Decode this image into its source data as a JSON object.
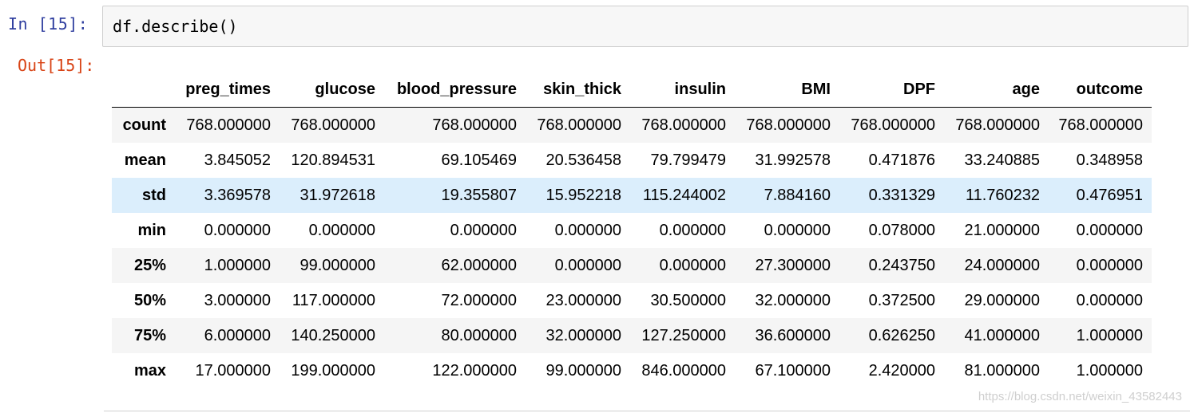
{
  "input_prompt": "In  [15]:",
  "code": "df.describe()",
  "output_prompt": "Out[15]:",
  "table": {
    "columns": [
      "preg_times",
      "glucose",
      "blood_pressure",
      "skin_thick",
      "insulin",
      "BMI",
      "DPF",
      "age",
      "outcome"
    ],
    "rows": [
      {
        "label": "count",
        "values": [
          "768.000000",
          "768.000000",
          "768.000000",
          "768.000000",
          "768.000000",
          "768.000000",
          "768.000000",
          "768.000000",
          "768.000000"
        ]
      },
      {
        "label": "mean",
        "values": [
          "3.845052",
          "120.894531",
          "69.105469",
          "20.536458",
          "79.799479",
          "31.992578",
          "0.471876",
          "33.240885",
          "0.348958"
        ]
      },
      {
        "label": "std",
        "values": [
          "3.369578",
          "31.972618",
          "19.355807",
          "15.952218",
          "115.244002",
          "7.884160",
          "0.331329",
          "11.760232",
          "0.476951"
        ]
      },
      {
        "label": "min",
        "values": [
          "0.000000",
          "0.000000",
          "0.000000",
          "0.000000",
          "0.000000",
          "0.000000",
          "0.078000",
          "21.000000",
          "0.000000"
        ]
      },
      {
        "label": "25%",
        "values": [
          "1.000000",
          "99.000000",
          "62.000000",
          "0.000000",
          "0.000000",
          "27.300000",
          "0.243750",
          "24.000000",
          "0.000000"
        ]
      },
      {
        "label": "50%",
        "values": [
          "3.000000",
          "117.000000",
          "72.000000",
          "23.000000",
          "30.500000",
          "32.000000",
          "0.372500",
          "29.000000",
          "0.000000"
        ]
      },
      {
        "label": "75%",
        "values": [
          "6.000000",
          "140.250000",
          "80.000000",
          "32.000000",
          "127.250000",
          "36.600000",
          "0.626250",
          "41.000000",
          "1.000000"
        ]
      },
      {
        "label": "max",
        "values": [
          "17.000000",
          "199.000000",
          "122.000000",
          "99.000000",
          "846.000000",
          "67.100000",
          "2.420000",
          "81.000000",
          "1.000000"
        ]
      }
    ],
    "hovered_row": "std"
  },
  "watermark": "https://blog.csdn.net/weixin_43582443",
  "colors": {
    "input_prompt": "#303f9f",
    "output_prompt": "#d84315",
    "hover_row": "#dbeefc",
    "stripe_row": "#f5f5f5"
  }
}
